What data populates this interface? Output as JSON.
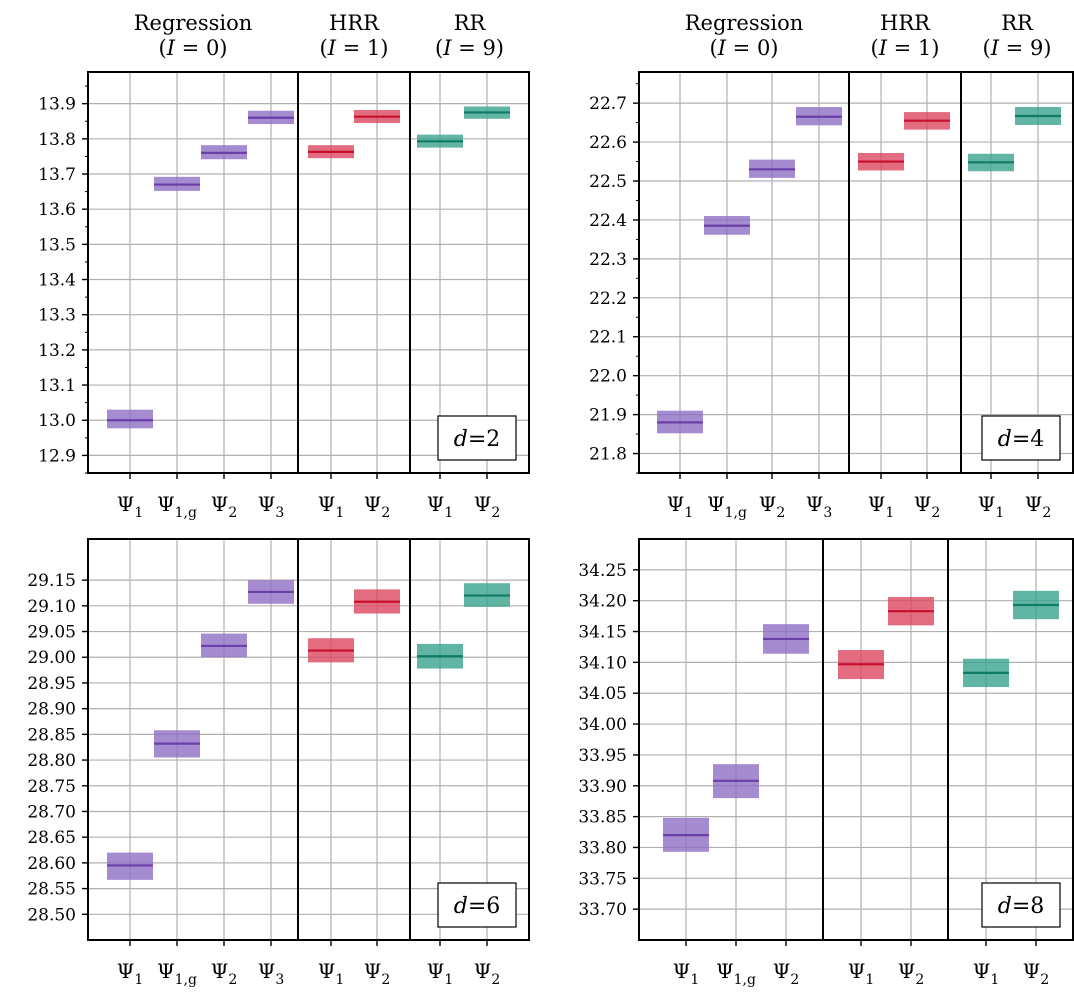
{
  "colors": {
    "regression": "#6a3fa6",
    "regression_fill": "#8f6ec4",
    "hrr": "#c8102e",
    "hrr_fill": "#dc4760",
    "rr": "#0f7a66",
    "rr_fill": "#3aa38e",
    "grid": "#b0b0b0",
    "axis": "#000000"
  },
  "chart_data": [
    {
      "type": "box",
      "panel_label": "d = 2",
      "ylim": [
        12.85,
        13.99
      ],
      "yticks": [
        "12.9",
        "13.0",
        "13.1",
        "13.2",
        "13.3",
        "13.4",
        "13.5",
        "13.6",
        "13.7",
        "13.8",
        "13.9"
      ],
      "minor_ticks": true,
      "groups": [
        {
          "title_line1": "Regression",
          "title_line2": "(I = 0)",
          "method": "regression",
          "categories": [
            "Ψ1",
            "Ψ1,g",
            "Ψ2",
            "Ψ3"
          ],
          "values": [
            13.0,
            13.67,
            13.76,
            13.86
          ],
          "low": [
            12.977,
            13.652,
            13.742,
            13.842
          ],
          "high": [
            13.03,
            13.692,
            13.782,
            13.88
          ]
        },
        {
          "title_line1": "HRR",
          "title_line2": "(I = 1)",
          "method": "hrr",
          "categories": [
            "Ψ1",
            "Ψ2"
          ],
          "values": [
            13.763,
            13.863
          ],
          "low": [
            13.745,
            13.845
          ],
          "high": [
            13.782,
            13.882
          ]
        },
        {
          "title_line1": "RR",
          "title_line2": "(I = 9)",
          "method": "rr",
          "categories": [
            "Ψ1",
            "Ψ2"
          ],
          "values": [
            13.793,
            13.875
          ],
          "low": [
            13.775,
            13.857
          ],
          "high": [
            13.812,
            13.892
          ]
        }
      ]
    },
    {
      "type": "box",
      "panel_label": "d = 4",
      "ylim": [
        21.75,
        22.78
      ],
      "yticks": [
        "21.8",
        "21.9",
        "22.0",
        "22.1",
        "22.2",
        "22.3",
        "22.4",
        "22.5",
        "22.6",
        "22.7"
      ],
      "minor_ticks": true,
      "groups": [
        {
          "title_line1": "Regression",
          "title_line2": "(I = 0)",
          "method": "regression",
          "categories": [
            "Ψ1",
            "Ψ1,g",
            "Ψ2",
            "Ψ3"
          ],
          "values": [
            21.88,
            22.385,
            22.53,
            22.665
          ],
          "low": [
            21.852,
            22.362,
            22.508,
            22.643
          ],
          "high": [
            21.91,
            22.41,
            22.555,
            22.69
          ]
        },
        {
          "title_line1": "HRR",
          "title_line2": "(I = 1)",
          "method": "hrr",
          "categories": [
            "Ψ1",
            "Ψ2"
          ],
          "values": [
            22.55,
            22.655
          ],
          "low": [
            22.527,
            22.632
          ],
          "high": [
            22.572,
            22.677
          ]
        },
        {
          "title_line1": "RR",
          "title_line2": "(I = 9)",
          "method": "rr",
          "categories": [
            "Ψ1",
            "Ψ2"
          ],
          "values": [
            22.548,
            22.667
          ],
          "low": [
            22.525,
            22.644
          ],
          "high": [
            22.57,
            22.69
          ]
        }
      ]
    },
    {
      "type": "box",
      "panel_label": "d = 6",
      "ylim": [
        28.45,
        29.23
      ],
      "yticks": [
        "28.50",
        "28.55",
        "28.60",
        "28.65",
        "28.70",
        "28.75",
        "28.80",
        "28.85",
        "28.90",
        "28.95",
        "29.00",
        "29.05",
        "29.10",
        "29.15"
      ],
      "minor_ticks": false,
      "groups": [
        {
          "title_line1": "",
          "title_line2": "",
          "method": "regression",
          "categories": [
            "Ψ1",
            "Ψ1,g",
            "Ψ2",
            "Ψ3"
          ],
          "values": [
            28.595,
            28.832,
            29.022,
            29.127
          ],
          "low": [
            28.567,
            28.805,
            29.0,
            29.104
          ],
          "high": [
            28.62,
            28.858,
            29.046,
            29.15
          ]
        },
        {
          "title_line1": "",
          "title_line2": "",
          "method": "hrr",
          "categories": [
            "Ψ1",
            "Ψ2"
          ],
          "values": [
            29.013,
            29.108
          ],
          "low": [
            28.99,
            29.085
          ],
          "high": [
            29.037,
            29.132
          ]
        },
        {
          "title_line1": "",
          "title_line2": "",
          "method": "rr",
          "categories": [
            "Ψ1",
            "Ψ2"
          ],
          "values": [
            29.002,
            29.12
          ],
          "low": [
            28.978,
            29.098
          ],
          "high": [
            29.026,
            29.144
          ]
        }
      ]
    },
    {
      "type": "box",
      "panel_label": "d = 8",
      "ylim": [
        33.65,
        34.3
      ],
      "yticks": [
        "33.70",
        "33.75",
        "33.80",
        "33.85",
        "33.90",
        "33.95",
        "34.00",
        "34.05",
        "34.10",
        "34.15",
        "34.20",
        "34.25"
      ],
      "minor_ticks": false,
      "groups": [
        {
          "title_line1": "",
          "title_line2": "",
          "method": "regression",
          "categories": [
            "Ψ1",
            "Ψ1,g",
            "Ψ2"
          ],
          "values": [
            33.82,
            33.908,
            34.138
          ],
          "low": [
            33.793,
            33.88,
            34.114
          ],
          "high": [
            33.848,
            33.935,
            34.162
          ]
        },
        {
          "title_line1": "",
          "title_line2": "",
          "method": "hrr",
          "categories": [
            "Ψ1",
            "Ψ2"
          ],
          "values": [
            34.097,
            34.183
          ],
          "low": [
            34.073,
            34.16
          ],
          "high": [
            34.12,
            34.206
          ]
        },
        {
          "title_line1": "",
          "title_line2": "",
          "method": "rr",
          "categories": [
            "Ψ1",
            "Ψ2"
          ],
          "values": [
            34.083,
            34.193
          ],
          "low": [
            34.06,
            34.17
          ],
          "high": [
            34.106,
            34.216
          ]
        }
      ]
    }
  ]
}
